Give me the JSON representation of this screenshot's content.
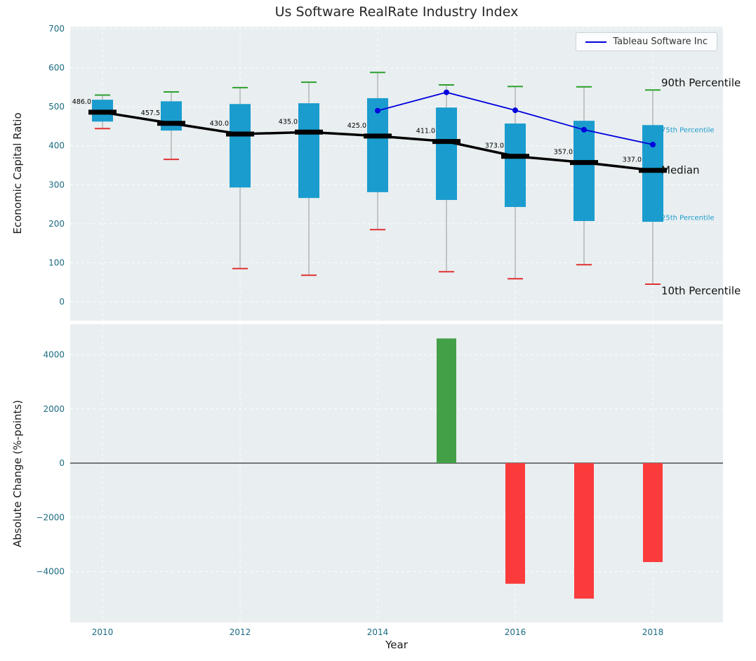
{
  "title": "Us Software RealRate Industry Index",
  "legend": {
    "label": "Tableau Software Inc",
    "line_color": "#0000dd"
  },
  "colors": {
    "panel_bg": "#e9eef0",
    "grid": "#f8fbfc",
    "tick_label": "#1b6a80",
    "box_fill": "#1a9cce",
    "whisker": "#999999",
    "cap_top": "#2ca02c",
    "cap_bottom": "#e03131",
    "median": "#000000",
    "tableau_line": "#0000dd",
    "zero_line": "#000000"
  },
  "chart_data": [
    {
      "type": "box",
      "title": "Us Software RealRate Industry Index",
      "ylabel": "Economic Capital Ratio",
      "ylim": [
        -49,
        705
      ],
      "grid": true,
      "y_ticks": [
        0,
        100,
        200,
        300,
        400,
        500,
        600,
        700
      ],
      "x_ticks": [
        2010,
        2012,
        2014,
        2016,
        2018
      ],
      "boxes": [
        {
          "year": 2010,
          "p10": 444,
          "p25": 462,
          "median": 486.0,
          "p75": 518,
          "p90": 530,
          "label": "486.0"
        },
        {
          "year": 2011,
          "p10": 365,
          "p25": 439,
          "median": 457.5,
          "p75": 514,
          "p90": 538,
          "label": "457.5"
        },
        {
          "year": 2012,
          "p10": 85,
          "p25": 293,
          "median": 430.0,
          "p75": 507,
          "p90": 549,
          "label": "430.0"
        },
        {
          "year": 2013,
          "p10": 68,
          "p25": 266,
          "median": 435.0,
          "p75": 509,
          "p90": 563,
          "label": "435.0"
        },
        {
          "year": 2014,
          "p10": 185,
          "p25": 281,
          "median": 425.0,
          "p75": 522,
          "p90": 588,
          "label": "425.0"
        },
        {
          "year": 2015,
          "p10": 77,
          "p25": 261,
          "median": 411.0,
          "p75": 498,
          "p90": 556,
          "label": "411.0"
        },
        {
          "year": 2016,
          "p10": 59,
          "p25": 243,
          "median": 373.0,
          "p75": 457,
          "p90": 552,
          "label": "373.0"
        },
        {
          "year": 2017,
          "p10": 95,
          "p25": 207,
          "median": 357.0,
          "p75": 464,
          "p90": 551,
          "label": "357.0"
        },
        {
          "year": 2018,
          "p10": 45,
          "p25": 205,
          "median": 337.0,
          "p75": 453,
          "p90": 543,
          "label": "337.0"
        }
      ],
      "series": [
        {
          "name": "Tableau Software Inc",
          "x": [
            2014,
            2015,
            2016,
            2017,
            2018
          ],
          "values": [
            490,
            537,
            491,
            441,
            403
          ],
          "color": "#0000dd"
        }
      ],
      "annotations": [
        {
          "label": "90th Percentile",
          "value": 561,
          "color": "#111111",
          "size": 15
        },
        {
          "label": "75th Percentile",
          "value": 444,
          "color": "#1a9cce",
          "size": 10
        },
        {
          "label": "Median",
          "value": 337,
          "color": "#111111",
          "size": 15
        },
        {
          "label": "25th Percentile",
          "value": 219,
          "color": "#1a9cce",
          "size": 10
        },
        {
          "label": "10th Percentile",
          "value": 28,
          "color": "#111111",
          "size": 15
        }
      ]
    },
    {
      "type": "bar",
      "ylabel": "Absolute Change (%-points)",
      "xlabel": "Year",
      "grid": true,
      "categories": [
        2015,
        2016,
        2017,
        2018
      ],
      "values": [
        4600,
        -4450,
        -5000,
        -3650
      ],
      "bar_colors": [
        "#43a047",
        "#fb3b3b",
        "#fb3b3b",
        "#fb3b3b"
      ],
      "y_ticks": [
        -4000,
        -2000,
        0,
        2000,
        4000
      ],
      "x_ticks": [
        2010,
        2012,
        2014,
        2016,
        2018
      ],
      "ylim": [
        -5877,
        5126
      ]
    }
  ]
}
